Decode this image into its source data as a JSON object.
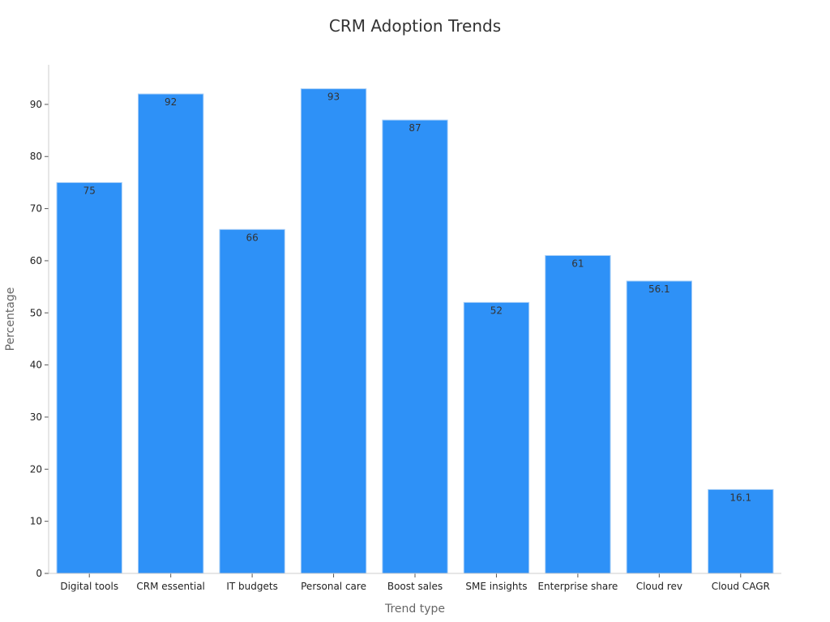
{
  "chart_data": {
    "type": "bar",
    "title": "CRM Adoption Trends",
    "xlabel": "Trend type",
    "ylabel": "Percentage",
    "categories": [
      "Digital tools",
      "CRM essential",
      "IT budgets",
      "Personal care",
      "Boost sales",
      "SME insights",
      "Enterprise share",
      "Cloud rev",
      "Cloud CAGR"
    ],
    "values": [
      75,
      92,
      66,
      93,
      87,
      52,
      61,
      56.1,
      16.1
    ],
    "value_labels": [
      "75",
      "92",
      "66",
      "93",
      "87",
      "52",
      "61",
      "56.1",
      "16.1"
    ],
    "yticks": [
      0,
      10,
      20,
      30,
      40,
      50,
      60,
      70,
      80,
      90
    ],
    "ylim": [
      0,
      97.6
    ],
    "grid": false,
    "colors": {
      "bar": "#2e91f7",
      "bar_edge": "#a9cff7",
      "axis": "#cccccc"
    }
  }
}
